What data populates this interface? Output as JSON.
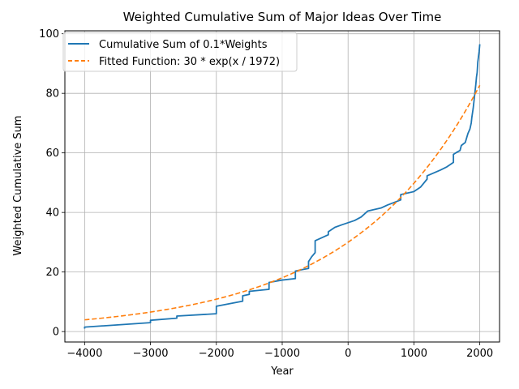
{
  "chart_data": {
    "type": "line",
    "title": "Weighted Cumulative Sum of Major Ideas Over Time",
    "xlabel": "Year",
    "ylabel": "Weighted Cumulative Sum",
    "xlim": [
      -4300,
      2300
    ],
    "ylim": [
      -3.5,
      101
    ],
    "xticks": [
      -4000,
      -3000,
      -2000,
      -1000,
      0,
      1000,
      2000
    ],
    "yticks": [
      0,
      20,
      40,
      60,
      80,
      100
    ],
    "grid": true,
    "legend_position": "top-left",
    "series": [
      {
        "name": "Cumulative Sum of 0.1*Weights",
        "color": "#1f77b4",
        "style": "solid",
        "points": [
          [
            -4000,
            1.0
          ],
          [
            -4000,
            1.5
          ],
          [
            -3000,
            3.0
          ],
          [
            -3000,
            3.8
          ],
          [
            -2600,
            4.5
          ],
          [
            -2600,
            5.2
          ],
          [
            -2000,
            6.0
          ],
          [
            -2000,
            8.5
          ],
          [
            -1600,
            10.2
          ],
          [
            -1600,
            12.0
          ],
          [
            -1500,
            12.5
          ],
          [
            -1500,
            13.5
          ],
          [
            -1200,
            14.2
          ],
          [
            -1200,
            16.5
          ],
          [
            -1000,
            17.3
          ],
          [
            -800,
            17.8
          ],
          [
            -800,
            20.3
          ],
          [
            -700,
            20.8
          ],
          [
            -600,
            21.2
          ],
          [
            -600,
            23.5
          ],
          [
            -550,
            25.2
          ],
          [
            -500,
            26.5
          ],
          [
            -500,
            30.5
          ],
          [
            -300,
            32.5
          ],
          [
            -300,
            33.5
          ],
          [
            -200,
            35.0
          ],
          [
            -100,
            35.8
          ],
          [
            100,
            37.3
          ],
          [
            200,
            38.5
          ],
          [
            300,
            40.5
          ],
          [
            500,
            41.5
          ],
          [
            600,
            42.5
          ],
          [
            800,
            44.2
          ],
          [
            800,
            46.0
          ],
          [
            900,
            46.5
          ],
          [
            1000,
            47.0
          ],
          [
            1100,
            48.5
          ],
          [
            1200,
            51.2
          ],
          [
            1200,
            52.3
          ],
          [
            1400,
            54.2
          ],
          [
            1500,
            55.3
          ],
          [
            1600,
            56.8
          ],
          [
            1600,
            59.5
          ],
          [
            1650,
            60.2
          ],
          [
            1700,
            60.8
          ],
          [
            1720,
            62.5
          ],
          [
            1750,
            63.0
          ],
          [
            1780,
            63.5
          ],
          [
            1800,
            65.0
          ],
          [
            1820,
            66.5
          ],
          [
            1850,
            68.0
          ],
          [
            1870,
            70.0
          ],
          [
            1880,
            72.0
          ],
          [
            1900,
            75.0
          ],
          [
            1910,
            77.0
          ],
          [
            1920,
            79.0
          ],
          [
            1930,
            81.0
          ],
          [
            1940,
            83.0
          ],
          [
            1950,
            85.5
          ],
          [
            1960,
            87.0
          ],
          [
            1970,
            90.5
          ],
          [
            1990,
            94.0
          ],
          [
            2000,
            96.5
          ]
        ]
      },
      {
        "name": "Fitted Function: 30 * exp(x / 1972)",
        "color": "#ff7f0e",
        "style": "dashed",
        "function": {
          "a": 30,
          "b": 1972,
          "x_from": -4000,
          "x_to": 2000
        }
      }
    ]
  }
}
